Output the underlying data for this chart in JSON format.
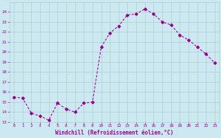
{
  "x": [
    0,
    1,
    2,
    3,
    4,
    5,
    6,
    7,
    8,
    9,
    10,
    11,
    12,
    13,
    14,
    15,
    16,
    17,
    18,
    19,
    20,
    21,
    22,
    23
  ],
  "y": [
    15.5,
    15.4,
    13.9,
    13.6,
    13.2,
    14.9,
    14.3,
    14.0,
    14.9,
    15.0,
    20.5,
    21.9,
    22.6,
    23.7,
    23.8,
    24.3,
    23.8,
    23.0,
    22.7,
    21.7,
    21.2,
    20.5,
    19.8,
    18.9
  ],
  "line_color": "#990099",
  "marker": "D",
  "marker_size": 2.0,
  "bg_color": "#cce8f0",
  "grid_color": "#aacccc",
  "xlabel": "Windchill (Refroidissement éolien,°C)",
  "xlabel_color": "#990099",
  "tick_color": "#990099",
  "ylim": [
    13,
    25
  ],
  "xlim": [
    -0.5,
    23.5
  ],
  "yticks": [
    13,
    14,
    15,
    16,
    17,
    18,
    19,
    20,
    21,
    22,
    23,
    24
  ],
  "xticks": [
    0,
    1,
    2,
    3,
    4,
    5,
    6,
    7,
    8,
    9,
    10,
    11,
    12,
    13,
    14,
    15,
    16,
    17,
    18,
    19,
    20,
    21,
    22,
    23
  ],
  "xtick_labels": [
    "0",
    "1",
    "2",
    "3",
    "4",
    "5",
    "6",
    "7",
    "8",
    "9",
    "10",
    "11",
    "12",
    "13",
    "14",
    "15",
    "16",
    "17",
    "18",
    "19",
    "20",
    "21",
    "22",
    "23"
  ],
  "ytick_labels": [
    "13",
    "14",
    "15",
    "16",
    "17",
    "18",
    "19",
    "20",
    "21",
    "22",
    "23",
    "24"
  ]
}
